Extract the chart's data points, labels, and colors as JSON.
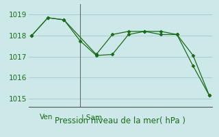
{
  "line1_x": [
    0,
    1,
    2,
    3,
    4,
    5,
    6,
    7,
    8,
    9,
    10,
    11
  ],
  "line1_y": [
    1018.0,
    1018.85,
    1018.75,
    1017.75,
    1017.05,
    1017.1,
    1018.05,
    1018.2,
    1018.2,
    1018.05,
    1016.55,
    1015.15
  ],
  "line2_x": [
    0,
    1,
    2,
    4,
    5,
    6,
    7,
    8,
    9,
    10,
    11
  ],
  "line2_y": [
    1018.0,
    1018.85,
    1018.75,
    1017.1,
    1018.05,
    1018.2,
    1018.2,
    1018.05,
    1018.05,
    1017.05,
    1015.15
  ],
  "line_color": "#1a6b1a",
  "bg_color": "#cce8e8",
  "grid_color": "#aacccc",
  "title": "Pression niveau de la mer( hPa )",
  "ylim": [
    1014.6,
    1019.5
  ],
  "yticks": [
    1015,
    1016,
    1017,
    1018,
    1019
  ],
  "xlim": [
    -0.2,
    11.2
  ],
  "vline_x": 3.0,
  "ven_x": 0.5,
  "sam_x": 3.1,
  "title_fontsize": 8.5,
  "tick_fontsize": 7.5
}
